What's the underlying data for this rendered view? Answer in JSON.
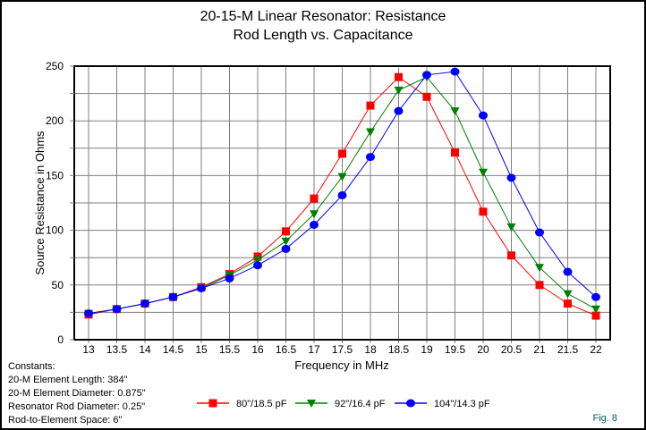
{
  "chart_data": {
    "type": "line",
    "title": "20-15-M Linear Resonator: Resistance",
    "subtitle": "Rod Length vs. Capacitance",
    "xlabel": "Frequency in MHz",
    "ylabel": "Source Resistance in Ohms",
    "xlim": [
      13,
      22
    ],
    "ylim": [
      0,
      250
    ],
    "grid": true,
    "x": [
      13,
      13.5,
      14,
      14.5,
      15,
      15.5,
      16,
      16.5,
      17,
      17.5,
      18,
      18.5,
      19,
      19.5,
      20,
      20.5,
      21,
      21.5,
      22
    ],
    "x_tick_labels": [
      "13",
      "13.5",
      "14",
      "14.5",
      "15",
      "15.5",
      "16",
      "16.5",
      "17",
      "17.5",
      "18",
      "18.5",
      "19",
      "19.5",
      "20",
      "20.5",
      "21",
      "21.5",
      "22"
    ],
    "y_ticks": [
      0,
      50,
      100,
      150,
      200,
      250
    ],
    "y_tick_labels": [
      "0",
      "50",
      "100",
      "150",
      "200",
      "250"
    ],
    "y_minor_grid": [
      25,
      75,
      125,
      175,
      225
    ],
    "legend_position": "bottom-center",
    "series": [
      {
        "name": "80\"/18.5 pF",
        "color": "#ff0000",
        "marker": "square",
        "values": [
          23,
          28,
          33,
          39,
          48,
          60,
          76,
          99,
          129,
          170,
          214,
          240,
          222,
          171,
          117,
          77,
          50,
          33,
          22
        ]
      },
      {
        "name": "92\"/16.4 pF",
        "color": "#008000",
        "marker": "triangle-down",
        "values": [
          24,
          28,
          33,
          39,
          47,
          59,
          73,
          90,
          115,
          149,
          190,
          228,
          240,
          209,
          153,
          103,
          66,
          42,
          28
        ]
      },
      {
        "name": "104\"/14.3 pF",
        "color": "#0000ff",
        "marker": "circle",
        "values": [
          24,
          28,
          33,
          39,
          47,
          56,
          68,
          83,
          105,
          132,
          167,
          209,
          242,
          245,
          205,
          148,
          98,
          62,
          39
        ]
      }
    ]
  },
  "constants": {
    "heading": "Constants:",
    "lines": [
      "20-M Element Length: 384\"",
      "20-M Element Diameter: 0.875\"",
      "Resonator Rod Diameter: 0.25\"",
      "Rod-to-Element Space: 6\""
    ]
  },
  "figure_label": "Fig. 8"
}
